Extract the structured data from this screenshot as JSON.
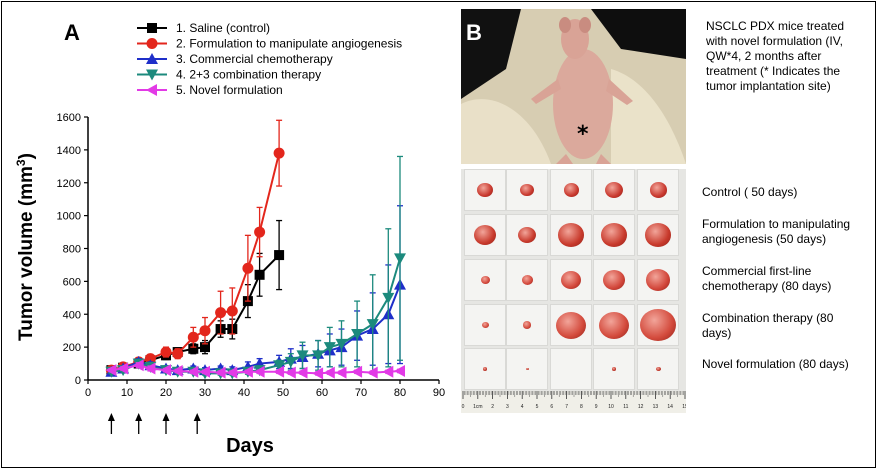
{
  "panel_a": {
    "letter": "A"
  },
  "panel_b": {
    "letter": "B"
  },
  "chart_data": {
    "type": "line",
    "xlabel": "Days",
    "ylabel": "Tumor volume (mm",
    "ylabel_sup": "3",
    "ylabel_close": ")",
    "xlim": [
      0,
      90
    ],
    "ylim": [
      0,
      1600
    ],
    "x_ticks": [
      0,
      10,
      20,
      30,
      40,
      50,
      60,
      70,
      80,
      90
    ],
    "y_ticks": [
      0,
      200,
      400,
      600,
      800,
      1000,
      1200,
      1400,
      1600
    ],
    "treatment_days": [
      6,
      13,
      20,
      28
    ],
    "series": [
      {
        "name": "1. Saline (control)",
        "color": "#000000",
        "marker": "square",
        "x": [
          6,
          9,
          13,
          16,
          20,
          23,
          27,
          30,
          34,
          37,
          41,
          44,
          49
        ],
        "y": [
          60,
          75,
          100,
          120,
          150,
          170,
          190,
          200,
          310,
          310,
          480,
          640,
          760
        ],
        "err": [
          10,
          10,
          15,
          20,
          25,
          25,
          30,
          40,
          50,
          60,
          100,
          130,
          210
        ]
      },
      {
        "name": "2. Formulation to manipulate angiogenesis",
        "color": "#e3261c",
        "marker": "circle",
        "x": [
          6,
          9,
          13,
          16,
          20,
          23,
          27,
          30,
          34,
          37,
          41,
          44,
          49
        ],
        "y": [
          60,
          80,
          110,
          130,
          170,
          160,
          260,
          300,
          410,
          420,
          680,
          900,
          1380
        ],
        "err": [
          10,
          15,
          20,
          25,
          30,
          30,
          60,
          80,
          130,
          140,
          200,
          150,
          200
        ]
      },
      {
        "name": "3. Commercial chemotherapy",
        "color": "#1f2fc9",
        "marker": "triangle-up",
        "x": [
          6,
          9,
          13,
          16,
          20,
          23,
          27,
          30,
          34,
          37,
          41,
          44,
          49,
          52,
          55,
          59,
          62,
          65,
          69,
          73,
          77,
          80
        ],
        "y": [
          50,
          70,
          110,
          90,
          70,
          60,
          70,
          60,
          70,
          60,
          80,
          100,
          110,
          130,
          140,
          160,
          180,
          200,
          270,
          310,
          400,
          580
        ],
        "err": [
          10,
          15,
          20,
          20,
          15,
          15,
          15,
          15,
          15,
          20,
          30,
          30,
          40,
          60,
          70,
          80,
          100,
          110,
          150,
          220,
          300,
          480
        ]
      },
      {
        "name": "4. 2+3 combination therapy",
        "color": "#1c8a7d",
        "marker": "triangle-down",
        "x": [
          6,
          9,
          13,
          16,
          20,
          23,
          27,
          30,
          34,
          37,
          41,
          44,
          49,
          52,
          55,
          59,
          62,
          65,
          69,
          73,
          77,
          80
        ],
        "y": [
          50,
          60,
          100,
          80,
          60,
          50,
          50,
          40,
          40,
          40,
          50,
          60,
          90,
          110,
          150,
          150,
          200,
          220,
          280,
          340,
          500,
          740
        ],
        "err": [
          10,
          10,
          15,
          15,
          10,
          10,
          10,
          10,
          10,
          10,
          15,
          20,
          30,
          50,
          80,
          90,
          120,
          140,
          200,
          300,
          420,
          620
        ]
      },
      {
        "name": "5. Novel formulation",
        "color": "#e23ae6",
        "marker": "triangle-left",
        "x": [
          6,
          9,
          13,
          16,
          20,
          23,
          27,
          30,
          34,
          37,
          41,
          44,
          49,
          52,
          55,
          59,
          62,
          65,
          69,
          73,
          77,
          80
        ],
        "y": [
          60,
          70,
          90,
          70,
          60,
          55,
          50,
          50,
          45,
          45,
          50,
          50,
          50,
          45,
          45,
          40,
          45,
          45,
          50,
          45,
          50,
          55
        ],
        "err": [
          10,
          10,
          15,
          15,
          10,
          10,
          10,
          10,
          10,
          10,
          10,
          10,
          10,
          10,
          10,
          10,
          10,
          10,
          10,
          10,
          10,
          10
        ]
      }
    ]
  },
  "description": {
    "lines": [
      "NSCLC PDX mice treated",
      "with novel formulation (IV,",
      "QW*4, 2 months  after",
      "treatment (* Indicates the",
      "tumor implantation site)"
    ]
  },
  "photo_marker": "*",
  "tumor_rows": [
    {
      "label_lines": [
        "Control  ( 50 days)"
      ],
      "color": "#c8382e"
    },
    {
      "label_lines": [
        "Formulation to manipulating",
        "angiogenesis (50 days)"
      ],
      "color": "#c83a2c"
    },
    {
      "label_lines": [
        "Commercial first-line",
        "chemotherapy (80 days)"
      ],
      "color": "#d2463a"
    },
    {
      "label_lines": [
        "Combination therapy (80",
        "days)"
      ],
      "color": "#d34a3c"
    },
    {
      "label_lines": [
        "Novel formulation (80 days)"
      ],
      "color": "#c23a2e"
    }
  ],
  "ruler": {
    "labels": [
      "0",
      "1cm",
      "2",
      "3",
      "4",
      "5",
      "6",
      "7",
      "8",
      "9",
      "10",
      "11",
      "12",
      "13",
      "14",
      "15"
    ]
  },
  "colors": {
    "photo_bg_dark": "#0e0e0e",
    "mouse_skin": "#d9a79a",
    "glove": "#e8e0c6"
  }
}
